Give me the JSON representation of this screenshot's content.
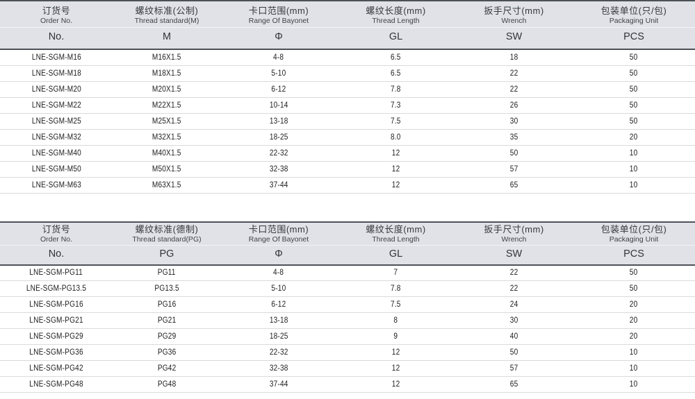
{
  "tables": [
    {
      "name": "metric-thread-table",
      "columns": [
        {
          "cn": "订货号",
          "en": "Order No.",
          "symbol": "No."
        },
        {
          "cn": "螺纹标准(公制)",
          "en": "Thread standard(M)",
          "symbol": "M"
        },
        {
          "cn": "卡口范围(mm)",
          "en": "Range Of Bayonet",
          "symbol": "Φ"
        },
        {
          "cn": "螺纹长度(mm)",
          "en": "Thread Length",
          "symbol": "GL"
        },
        {
          "cn": "扳手尺寸(mm)",
          "en": "Wrench",
          "symbol": "SW"
        },
        {
          "cn": "包装单位(只/包)",
          "en": "Packaging Unit",
          "symbol": "PCS"
        }
      ],
      "rows": [
        [
          "LNE-SGM-M16",
          "M16X1.5",
          "4-8",
          "6.5",
          "18",
          "50"
        ],
        [
          "LNE-SGM-M18",
          "M18X1.5",
          "5-10",
          "6.5",
          "22",
          "50"
        ],
        [
          "LNE-SGM-M20",
          "M20X1.5",
          "6-12",
          "7.8",
          "22",
          "50"
        ],
        [
          "LNE-SGM-M22",
          "M22X1.5",
          "10-14",
          "7.3",
          "26",
          "50"
        ],
        [
          "LNE-SGM-M25",
          "M25X1.5",
          "13-18",
          "7.5",
          "30",
          "50"
        ],
        [
          "LNE-SGM-M32",
          "M32X1.5",
          "18-25",
          "8.0",
          "35",
          "20"
        ],
        [
          "LNE-SGM-M40",
          "M40X1.5",
          "22-32",
          "12",
          "50",
          "10"
        ],
        [
          "LNE-SGM-M50",
          "M50X1.5",
          "32-38",
          "12",
          "57",
          "10"
        ],
        [
          "LNE-SGM-M63",
          "M63X1.5",
          "37-44",
          "12",
          "65",
          "10"
        ]
      ]
    },
    {
      "name": "pg-thread-table",
      "columns": [
        {
          "cn": "订货号",
          "en": "Order No.",
          "symbol": "No."
        },
        {
          "cn": "螺纹标准(德制)",
          "en": "Thread standard(PG)",
          "symbol": "PG"
        },
        {
          "cn": "卡口范围(mm)",
          "en": "Range Of Bayonet",
          "symbol": "Φ"
        },
        {
          "cn": "螺纹长度(mm)",
          "en": "Thread Length",
          "symbol": "GL"
        },
        {
          "cn": "扳手尺寸(mm)",
          "en": "Wrench",
          "symbol": "SW"
        },
        {
          "cn": "包装单位(只/包)",
          "en": "Packaging Unit",
          "symbol": "PCS"
        }
      ],
      "rows": [
        [
          "LNE-SGM-PG11",
          "PG11",
          "4-8",
          "7",
          "22",
          "50"
        ],
        [
          "LNE-SGM-PG13.5",
          "PG13.5",
          "5-10",
          "7.8",
          "22",
          "50"
        ],
        [
          "LNE-SGM-PG16",
          "PG16",
          "6-12",
          "7.5",
          "24",
          "20"
        ],
        [
          "LNE-SGM-PG21",
          "PG21",
          "13-18",
          "8",
          "30",
          "20"
        ],
        [
          "LNE-SGM-PG29",
          "PG29",
          "18-25",
          "9",
          "40",
          "20"
        ],
        [
          "LNE-SGM-PG36",
          "PG36",
          "22-32",
          "12",
          "50",
          "10"
        ],
        [
          "LNE-SGM-PG42",
          "PG42",
          "32-38",
          "12",
          "57",
          "10"
        ],
        [
          "LNE-SGM-PG48",
          "PG48",
          "37-44",
          "12",
          "65",
          "10"
        ]
      ]
    }
  ],
  "colors": {
    "header_bg": "#e0e2e7",
    "dark_border": "#4d5157",
    "row_divider": "#d9dadd",
    "text": "#1d1d1f"
  }
}
